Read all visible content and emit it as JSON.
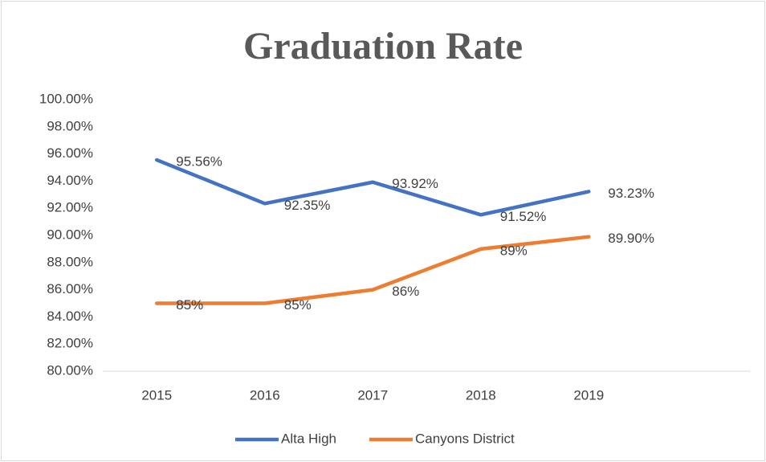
{
  "chart_data": {
    "type": "line",
    "title": "Graduation Rate",
    "categories": [
      "2015",
      "2016",
      "2017",
      "2018",
      "2019",
      null
    ],
    "series": [
      {
        "name": "Alta High",
        "color": "#4472c4",
        "values": [
          95.56,
          92.35,
          93.92,
          91.52,
          93.23,
          null
        ],
        "value_labels": [
          "95.56%",
          "92.35%",
          "93.92%",
          "91.52%",
          "93.23%",
          null
        ]
      },
      {
        "name": "Canyons District",
        "color": "#ed7d31",
        "values": [
          85,
          85,
          86,
          89,
          89.9,
          null
        ],
        "value_labels": [
          "85%",
          "85%",
          "86%",
          "89%",
          "89.90%",
          null
        ]
      }
    ],
    "ylim": [
      80,
      100
    ],
    "yticks": [
      {
        "value": 80,
        "label": "80.00%"
      },
      {
        "value": 82,
        "label": "82.00%"
      },
      {
        "value": 84,
        "label": "84.00%"
      },
      {
        "value": 86,
        "label": "86.00%"
      },
      {
        "value": 88,
        "label": "88.00%"
      },
      {
        "value": 90,
        "label": "90.00%"
      },
      {
        "value": 92,
        "label": "92.00%"
      },
      {
        "value": 94,
        "label": "94.00%"
      },
      {
        "value": 96,
        "label": "96.00%"
      },
      {
        "value": 98,
        "label": "98.00%"
      },
      {
        "value": 100,
        "label": "100.00%"
      }
    ],
    "grid": false,
    "legend": "bottom"
  }
}
